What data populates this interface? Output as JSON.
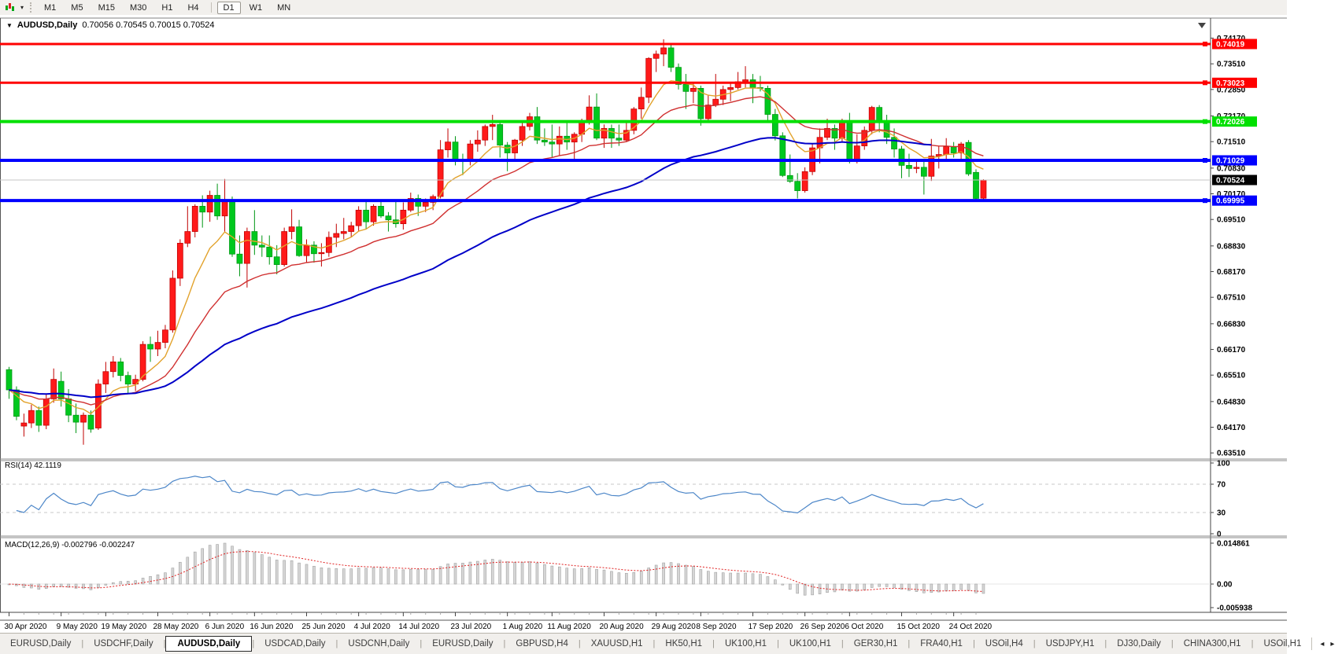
{
  "toolbar": {
    "chart_type_icon": "candlestick-chart-icon",
    "timeframes": [
      "M1",
      "M5",
      "M15",
      "M30",
      "H1",
      "H4",
      "D1",
      "W1",
      "MN"
    ],
    "active_timeframe": "D1",
    "separator_after": "H4"
  },
  "chart": {
    "title_symbol": "AUDUSD,Daily",
    "title_ohlc": "0.70056 0.70545 0.70015 0.70524",
    "collapse_arrow": "▼"
  },
  "rsi_panel": {
    "label": "RSI(14) 42.1119"
  },
  "macd_panel": {
    "label": "MACD(12,26,9) -0.002796 -0.002247"
  },
  "chart_data": {
    "type": "candlestick",
    "symbol": "AUDUSD",
    "period": "Daily",
    "last_candle": {
      "open": 0.70056,
      "high": 0.70545,
      "low": 0.70015,
      "close": 0.70524
    },
    "colors": {
      "up_candle": "#FF1A1A",
      "up_border": "#C00000",
      "down_candle": "#00C81E",
      "down_border": "#009614",
      "ma_fast": "#E2A22B",
      "ma_medium": "#D03030",
      "ma_slow": "#0000C8",
      "rsi_line": "#4C86C8",
      "macd_histogram": "#D6D6D6",
      "macd_histogram_border": "#A2A2A2",
      "macd_signal": "#E02020",
      "level_dash": "#C8C8C8",
      "current_price_line": "#C4C4C4"
    },
    "price_axis_ticks": [
      "0.74170",
      "0.73510",
      "0.72850",
      "0.72170",
      "0.71510",
      "0.70830",
      "0.70170",
      "0.69510",
      "0.68830",
      "0.68170",
      "0.67510",
      "0.66830",
      "0.66170",
      "0.65510",
      "0.64830",
      "0.64170",
      "0.63510"
    ],
    "horizontal_lines": [
      {
        "price": 0.74019,
        "label": "0.74019",
        "color": "#FF0000",
        "width": 3
      },
      {
        "price": 0.73023,
        "label": "0.73023",
        "color": "#FF0000",
        "width": 3
      },
      {
        "price": 0.72026,
        "label": "0.72026",
        "color": "#00E000",
        "width": 4
      },
      {
        "price": 0.71029,
        "label": "0.71029",
        "color": "#0000FF",
        "width": 4
      },
      {
        "price": 0.69995,
        "label": "0.69995",
        "color": "#0000FF",
        "width": 4
      }
    ],
    "current_price": {
      "price": 0.70524,
      "label": "0.70524",
      "label_bg": "#000000"
    },
    "x_axis_labels": [
      {
        "text": "30 Apr 2020",
        "candle_index": 0
      },
      {
        "text": "9 May 2020",
        "candle_index": 7
      },
      {
        "text": "19 May 2020",
        "candle_index": 13
      },
      {
        "text": "28 May 2020",
        "candle_index": 20
      },
      {
        "text": "6 Jun 2020",
        "candle_index": 27
      },
      {
        "text": "16 Jun 2020",
        "candle_index": 33
      },
      {
        "text": "25 Jun 2020",
        "candle_index": 40
      },
      {
        "text": "4 Jul 2020",
        "candle_index": 47
      },
      {
        "text": "14 Jul 2020",
        "candle_index": 53
      },
      {
        "text": "23 Jul 2020",
        "candle_index": 60
      },
      {
        "text": "1 Aug 2020",
        "candle_index": 67
      },
      {
        "text": "11 Aug 2020",
        "candle_index": 73
      },
      {
        "text": "20 Aug 2020",
        "candle_index": 80
      },
      {
        "text": "29 Aug 2020",
        "candle_index": 87
      },
      {
        "text": "8 Sep 2020",
        "candle_index": 93
      },
      {
        "text": "17 Sep 2020",
        "candle_index": 100
      },
      {
        "text": "26 Sep 2020",
        "candle_index": 107
      },
      {
        "text": "6 Oct 2020",
        "candle_index": 113
      },
      {
        "text": "15 Oct 2020",
        "candle_index": 120
      },
      {
        "text": "24 Oct 2020",
        "candle_index": 127
      }
    ],
    "candles": [
      [
        0.6565,
        0.6572,
        0.649,
        0.6513
      ],
      [
        0.6513,
        0.6522,
        0.6435,
        0.6445
      ],
      [
        0.642,
        0.6452,
        0.6393,
        0.6428
      ],
      [
        0.6428,
        0.6475,
        0.6415,
        0.646
      ],
      [
        0.646,
        0.647,
        0.6405,
        0.6422
      ],
      [
        0.6422,
        0.6502,
        0.6412,
        0.649
      ],
      [
        0.649,
        0.6568,
        0.648,
        0.654
      ],
      [
        0.6535,
        0.656,
        0.647,
        0.649
      ],
      [
        0.649,
        0.6515,
        0.643,
        0.6448
      ],
      [
        0.6448,
        0.6478,
        0.6402,
        0.643
      ],
      [
        0.643,
        0.6455,
        0.6372,
        0.6448
      ],
      [
        0.6448,
        0.646,
        0.6403,
        0.6412
      ],
      [
        0.6415,
        0.654,
        0.641,
        0.6528
      ],
      [
        0.6528,
        0.6585,
        0.6505,
        0.656
      ],
      [
        0.656,
        0.66,
        0.6545,
        0.6585
      ],
      [
        0.6585,
        0.6595,
        0.6535,
        0.655
      ],
      [
        0.655,
        0.656,
        0.6505,
        0.6528
      ],
      [
        0.6528,
        0.6552,
        0.651,
        0.654
      ],
      [
        0.654,
        0.6638,
        0.6535,
        0.663
      ],
      [
        0.663,
        0.665,
        0.6585,
        0.6618
      ],
      [
        0.6618,
        0.6665,
        0.66,
        0.6635
      ],
      [
        0.6635,
        0.668,
        0.662,
        0.6667
      ],
      [
        0.6667,
        0.682,
        0.666,
        0.68
      ],
      [
        0.68,
        0.69,
        0.678,
        0.689
      ],
      [
        0.689,
        0.6985,
        0.688,
        0.692
      ],
      [
        0.692,
        0.699,
        0.6905,
        0.6985
      ],
      [
        0.6985,
        0.7013,
        0.693,
        0.697
      ],
      [
        0.697,
        0.7025,
        0.6945,
        0.7013
      ],
      [
        0.7013,
        0.7043,
        0.695,
        0.696
      ],
      [
        0.696,
        0.7055,
        0.692,
        0.7002
      ],
      [
        0.7002,
        0.701,
        0.6855,
        0.6862
      ],
      [
        0.6862,
        0.691,
        0.6805,
        0.6838
      ],
      [
        0.6838,
        0.693,
        0.6776,
        0.692
      ],
      [
        0.692,
        0.6975,
        0.686,
        0.6885
      ],
      [
        0.6885,
        0.691,
        0.6855,
        0.688
      ],
      [
        0.688,
        0.691,
        0.6835,
        0.6855
      ],
      [
        0.6855,
        0.6885,
        0.681,
        0.6835
      ],
      [
        0.6835,
        0.693,
        0.683,
        0.692
      ],
      [
        0.692,
        0.6977,
        0.69,
        0.6932
      ],
      [
        0.6932,
        0.695,
        0.6855,
        0.6858
      ],
      [
        0.6858,
        0.69,
        0.684,
        0.6885
      ],
      [
        0.6885,
        0.6895,
        0.684,
        0.6863
      ],
      [
        0.6863,
        0.689,
        0.683,
        0.6866
      ],
      [
        0.6866,
        0.692,
        0.6855,
        0.6905
      ],
      [
        0.6905,
        0.694,
        0.688,
        0.6915
      ],
      [
        0.6915,
        0.6955,
        0.69,
        0.692
      ],
      [
        0.692,
        0.6945,
        0.6905,
        0.6935
      ],
      [
        0.6935,
        0.6985,
        0.692,
        0.6975
      ],
      [
        0.6975,
        0.6998,
        0.6925,
        0.6945
      ],
      [
        0.6945,
        0.699,
        0.6935,
        0.6985
      ],
      [
        0.6985,
        0.7,
        0.6955,
        0.696
      ],
      [
        0.696,
        0.697,
        0.692,
        0.695
      ],
      [
        0.695,
        0.7,
        0.693,
        0.694
      ],
      [
        0.694,
        0.6995,
        0.6925,
        0.6975
      ],
      [
        0.6975,
        0.702,
        0.697,
        0.7005
      ],
      [
        0.7005,
        0.7015,
        0.696,
        0.6985
      ],
      [
        0.6985,
        0.7005,
        0.697,
        0.6995
      ],
      [
        0.6995,
        0.7015,
        0.6975,
        0.701
      ],
      [
        0.701,
        0.7155,
        0.7005,
        0.713
      ],
      [
        0.713,
        0.7185,
        0.711,
        0.715
      ],
      [
        0.715,
        0.7165,
        0.709,
        0.7105
      ],
      [
        0.7105,
        0.712,
        0.7065,
        0.71
      ],
      [
        0.71,
        0.7155,
        0.709,
        0.7145
      ],
      [
        0.7145,
        0.718,
        0.7125,
        0.7155
      ],
      [
        0.7155,
        0.7195,
        0.714,
        0.719
      ],
      [
        0.719,
        0.722,
        0.7155,
        0.7195
      ],
      [
        0.7195,
        0.7205,
        0.711,
        0.7142
      ],
      [
        0.7142,
        0.715,
        0.7075,
        0.7122
      ],
      [
        0.7122,
        0.7158,
        0.71,
        0.7155
      ],
      [
        0.7155,
        0.72,
        0.714,
        0.719
      ],
      [
        0.719,
        0.7225,
        0.718,
        0.7215
      ],
      [
        0.7215,
        0.724,
        0.7145,
        0.7155
      ],
      [
        0.7155,
        0.7185,
        0.714,
        0.715
      ],
      [
        0.715,
        0.7195,
        0.711,
        0.7145
      ],
      [
        0.7145,
        0.719,
        0.7115,
        0.7165
      ],
      [
        0.7165,
        0.72,
        0.713,
        0.715
      ],
      [
        0.715,
        0.7175,
        0.7105,
        0.717
      ],
      [
        0.717,
        0.721,
        0.715,
        0.7205
      ],
      [
        0.7205,
        0.727,
        0.7195,
        0.724
      ],
      [
        0.724,
        0.7275,
        0.7155,
        0.716
      ],
      [
        0.716,
        0.7195,
        0.7135,
        0.7185
      ],
      [
        0.7185,
        0.7195,
        0.7135,
        0.716
      ],
      [
        0.716,
        0.7195,
        0.714,
        0.7155
      ],
      [
        0.7155,
        0.7205,
        0.715,
        0.718
      ],
      [
        0.718,
        0.724,
        0.717,
        0.7235
      ],
      [
        0.7235,
        0.729,
        0.721,
        0.7265
      ],
      [
        0.7265,
        0.7368,
        0.725,
        0.7365
      ],
      [
        0.7365,
        0.7385,
        0.733,
        0.7376
      ],
      [
        0.7376,
        0.7414,
        0.7345,
        0.7392
      ],
      [
        0.7392,
        0.74,
        0.733,
        0.7342
      ],
      [
        0.7342,
        0.7352,
        0.7285,
        0.7298
      ],
      [
        0.7298,
        0.7325,
        0.7235,
        0.728
      ],
      [
        0.728,
        0.73,
        0.725,
        0.7288
      ],
      [
        0.7288,
        0.7295,
        0.7192,
        0.721
      ],
      [
        0.721,
        0.727,
        0.7205,
        0.7245
      ],
      [
        0.7245,
        0.7325,
        0.724,
        0.726
      ],
      [
        0.726,
        0.7295,
        0.7245,
        0.7285
      ],
      [
        0.7285,
        0.7305,
        0.7255,
        0.729
      ],
      [
        0.729,
        0.733,
        0.7285,
        0.7305
      ],
      [
        0.7305,
        0.7345,
        0.729,
        0.731
      ],
      [
        0.731,
        0.7325,
        0.725,
        0.729
      ],
      [
        0.729,
        0.732,
        0.728,
        0.7288
      ],
      [
        0.7288,
        0.7295,
        0.72,
        0.7221
      ],
      [
        0.7221,
        0.7235,
        0.7154,
        0.7166
      ],
      [
        0.7166,
        0.7175,
        0.706,
        0.7064
      ],
      [
        0.7064,
        0.7118,
        0.7045,
        0.7049
      ],
      [
        0.7049,
        0.707,
        0.7005,
        0.7025
      ],
      [
        0.7025,
        0.7085,
        0.702,
        0.7074
      ],
      [
        0.7074,
        0.7145,
        0.7065,
        0.7135
      ],
      [
        0.7135,
        0.7185,
        0.7095,
        0.7162
      ],
      [
        0.7162,
        0.721,
        0.7155,
        0.7185
      ],
      [
        0.7185,
        0.7195,
        0.713,
        0.716
      ],
      [
        0.716,
        0.721,
        0.715,
        0.7205
      ],
      [
        0.7205,
        0.7225,
        0.7095,
        0.7105
      ],
      [
        0.7105,
        0.717,
        0.7095,
        0.714
      ],
      [
        0.714,
        0.719,
        0.713,
        0.718
      ],
      [
        0.718,
        0.7243,
        0.717,
        0.7239
      ],
      [
        0.7239,
        0.7245,
        0.7175,
        0.7202
      ],
      [
        0.7202,
        0.722,
        0.7145,
        0.7162
      ],
      [
        0.7162,
        0.7185,
        0.711,
        0.7132
      ],
      [
        0.7132,
        0.714,
        0.7057,
        0.709
      ],
      [
        0.709,
        0.712,
        0.706,
        0.7082
      ],
      [
        0.7082,
        0.71,
        0.707,
        0.7085
      ],
      [
        0.7085,
        0.7105,
        0.7015,
        0.7062
      ],
      [
        0.7062,
        0.7158,
        0.705,
        0.7114
      ],
      [
        0.7114,
        0.714,
        0.7082,
        0.7118
      ],
      [
        0.7118,
        0.716,
        0.7105,
        0.7138
      ],
      [
        0.7138,
        0.715,
        0.711,
        0.7122
      ],
      [
        0.7122,
        0.715,
        0.7105,
        0.7145
      ],
      [
        0.7149,
        0.7155,
        0.7063,
        0.7068
      ],
      [
        0.7072,
        0.708,
        0.7002,
        0.7005
      ],
      [
        0.70056,
        0.70545,
        0.70015,
        0.70524
      ]
    ],
    "moving_averages": [
      {
        "name": "fast",
        "period": 8,
        "color_key": "ma_fast"
      },
      {
        "name": "medium",
        "period": 21,
        "color_key": "ma_medium"
      },
      {
        "name": "slow",
        "period": 55,
        "color_key": "ma_slow",
        "end_index": 124
      }
    ],
    "rsi": {
      "period": 14,
      "current_value": 42.1119,
      "levels": [
        "100",
        "70",
        "30",
        "0"
      ],
      "overbought": 70,
      "oversold": 30
    },
    "macd": {
      "fast": 12,
      "slow": 26,
      "signal": 9,
      "current_macd": -0.002796,
      "current_signal": -0.002247,
      "axis_labels": [
        "0.014861",
        "0.00",
        "-0.005938"
      ]
    }
  },
  "tabbar": {
    "tabs": [
      "EURUSD,Daily",
      "USDCHF,Daily",
      "AUDUSD,Daily",
      "USDCAD,Daily",
      "USDCNH,Daily",
      "EURUSD,Daily",
      "GBPUSD,H4",
      "XAUUSD,H1",
      "HK50,H1",
      "UK100,H1",
      "UK100,H1",
      "GER30,H1",
      "FRA40,H1",
      "USOil,H4",
      "USDJPY,H1",
      "DJ30,Daily",
      "CHINA300,H1",
      "USOil,H1"
    ],
    "active_index": 2,
    "scroll_left": "◂",
    "scroll_right": "▸"
  }
}
